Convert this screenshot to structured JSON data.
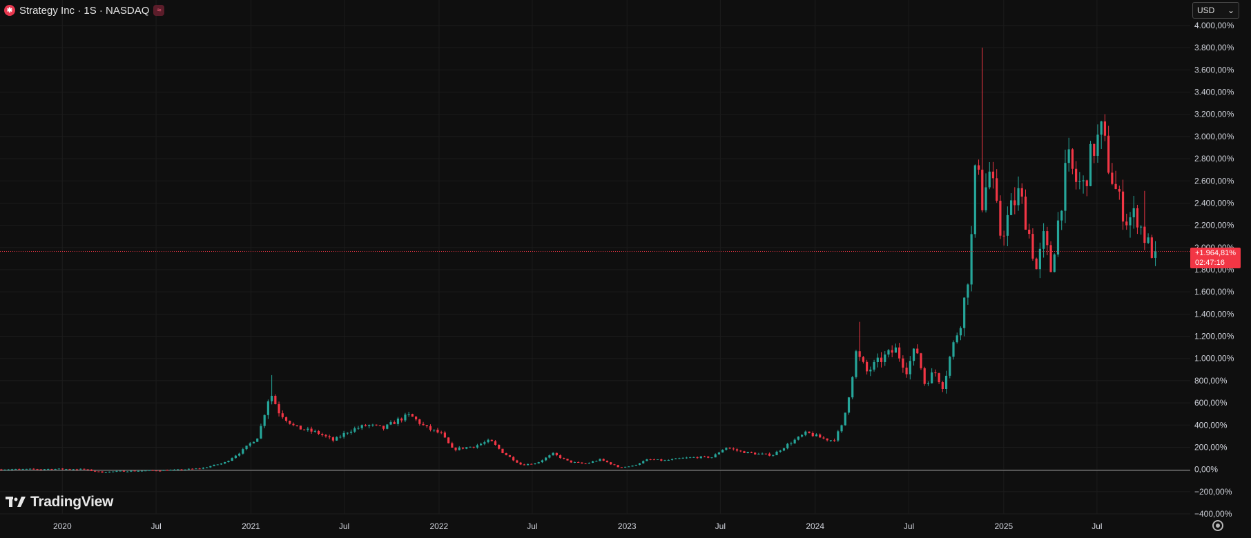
{
  "header": {
    "symbol_title": "Strategy Inc · 1S · NASDAQ",
    "logo_icon": "strategy-logo-icon",
    "status_icon": "approximation-icon"
  },
  "currency_select": {
    "value": "USD",
    "icon": "chevron-down-icon"
  },
  "branding": {
    "text": "TradingView",
    "icon": "tradingview-logo-icon"
  },
  "last_price": {
    "value": "+1.964,81%",
    "countdown": "02:47:16"
  },
  "colors": {
    "background": "#0f0f0f",
    "up": "#26a69a",
    "down": "#f23645",
    "grid": "#1c1c1c",
    "axis_text": "#d1d4dc"
  },
  "chart_data": {
    "type": "candlestick",
    "scale": "percent",
    "title": "",
    "xlabel": "",
    "ylabel": "",
    "ylim": [
      -400,
      4000
    ],
    "y_ticks": [
      -400,
      -200,
      0,
      200,
      400,
      600,
      800,
      1000,
      1200,
      1400,
      1600,
      1800,
      2000,
      2200,
      2400,
      2600,
      2800,
      3000,
      3200,
      3400,
      3600,
      3800,
      4000
    ],
    "y_tick_labels": [
      "−400,00%",
      "−200,00%",
      "0,00%",
      "200,00%",
      "400,00%",
      "600,00%",
      "800,00%",
      "1.000,00%",
      "1.200,00%",
      "1.400,00%",
      "1.600,00%",
      "1.800,00%",
      "2.000,00%",
      "2.200,00%",
      "2.400,00%",
      "2.600,00%",
      "2.800,00%",
      "3.000,00%",
      "3.200,00%",
      "3.400,00%",
      "3.600,00%",
      "3.800,00%",
      "4.000,00%"
    ],
    "x_range": [
      "2019-09-02",
      "2025-12-29"
    ],
    "x_ticks": [
      {
        "date": "2020-01-01",
        "label": "2020"
      },
      {
        "date": "2020-07-01",
        "label": "Jul"
      },
      {
        "date": "2021-01-01",
        "label": "2021"
      },
      {
        "date": "2021-07-01",
        "label": "Jul"
      },
      {
        "date": "2022-01-01",
        "label": "2022"
      },
      {
        "date": "2022-07-01",
        "label": "Jul"
      },
      {
        "date": "2023-01-01",
        "label": "2023"
      },
      {
        "date": "2023-07-01",
        "label": "Jul"
      },
      {
        "date": "2024-01-01",
        "label": "2024"
      },
      {
        "date": "2024-07-01",
        "label": "Jul"
      },
      {
        "date": "2025-01-01",
        "label": "2025"
      },
      {
        "date": "2025-07-01",
        "label": "Jul"
      }
    ],
    "last_value": 1964.81,
    "grid": true,
    "series_path": [
      [
        "2019-09-02",
        0
      ],
      [
        "2019-11-01",
        2
      ],
      [
        "2020-01-01",
        4
      ],
      [
        "2020-02-15",
        2
      ],
      [
        "2020-03-20",
        -25
      ],
      [
        "2020-05-01",
        -15
      ],
      [
        "2020-07-01",
        -10
      ],
      [
        "2020-08-15",
        -5
      ],
      [
        "2020-10-01",
        10
      ],
      [
        "2020-11-15",
        60
      ],
      [
        "2020-12-20",
        170
      ],
      [
        "2021-01-20",
        300
      ],
      [
        "2021-02-12",
        700
      ],
      [
        "2021-03-01",
        520
      ],
      [
        "2021-04-01",
        380
      ],
      [
        "2021-05-15",
        330
      ],
      [
        "2021-06-15",
        260
      ],
      [
        "2021-07-15",
        350
      ],
      [
        "2021-08-20",
        400
      ],
      [
        "2021-09-20",
        370
      ],
      [
        "2021-10-20",
        450
      ],
      [
        "2021-11-10",
        490
      ],
      [
        "2021-12-10",
        380
      ],
      [
        "2022-01-10",
        320
      ],
      [
        "2022-02-01",
        180
      ],
      [
        "2022-03-15",
        210
      ],
      [
        "2022-04-15",
        260
      ],
      [
        "2022-05-10",
        150
      ],
      [
        "2022-06-15",
        40
      ],
      [
        "2022-07-15",
        60
      ],
      [
        "2022-08-15",
        140
      ],
      [
        "2022-09-15",
        70
      ],
      [
        "2022-10-15",
        50
      ],
      [
        "2022-11-15",
        90
      ],
      [
        "2022-12-20",
        20
      ],
      [
        "2023-01-15",
        30
      ],
      [
        "2023-02-15",
        90
      ],
      [
        "2023-03-20",
        80
      ],
      [
        "2023-04-20",
        100
      ],
      [
        "2023-05-20",
        110
      ],
      [
        "2023-06-20",
        110
      ],
      [
        "2023-07-15",
        200
      ],
      [
        "2023-08-15",
        160
      ],
      [
        "2023-09-15",
        140
      ],
      [
        "2023-10-15",
        130
      ],
      [
        "2023-11-15",
        230
      ],
      [
        "2023-12-20",
        330
      ],
      [
        "2024-01-20",
        280
      ],
      [
        "2024-02-10",
        260
      ],
      [
        "2024-02-28",
        400
      ],
      [
        "2024-03-10",
        650
      ],
      [
        "2024-03-25",
        1050
      ],
      [
        "2024-04-15",
        880
      ],
      [
        "2024-05-15",
        1000
      ],
      [
        "2024-06-10",
        1080
      ],
      [
        "2024-07-01",
        900
      ],
      [
        "2024-07-20",
        1100
      ],
      [
        "2024-08-05",
        780
      ],
      [
        "2024-08-25",
        880
      ],
      [
        "2024-09-10",
        750
      ],
      [
        "2024-09-25",
        1050
      ],
      [
        "2024-10-15",
        1350
      ],
      [
        "2024-11-01",
        1850
      ],
      [
        "2024-11-15",
        2950
      ],
      [
        "2024-11-25",
        2400
      ],
      [
        "2024-12-10",
        2700
      ],
      [
        "2024-12-31",
        2100
      ],
      [
        "2025-01-20",
        2350
      ],
      [
        "2025-02-05",
        2500
      ],
      [
        "2025-02-25",
        2100
      ],
      [
        "2025-03-10",
        1800
      ],
      [
        "2025-03-25",
        2100
      ],
      [
        "2025-04-07",
        1800
      ],
      [
        "2025-04-25",
        2350
      ],
      [
        "2025-05-10",
        2800
      ],
      [
        "2025-05-25",
        2600
      ],
      [
        "2025-06-10",
        2550
      ],
      [
        "2025-06-25",
        2850
      ],
      [
        "2025-07-15",
        3050
      ],
      [
        "2025-07-30",
        2700
      ],
      [
        "2025-08-15",
        2450
      ],
      [
        "2025-09-01",
        2250
      ],
      [
        "2025-09-20",
        2300
      ],
      [
        "2025-10-05",
        2100
      ],
      [
        "2025-10-20",
        1964.81
      ]
    ],
    "spikes": [
      {
        "date": "2021-02-08",
        "high": 850
      },
      {
        "date": "2024-03-27",
        "high": 1330
      },
      {
        "date": "2024-11-18",
        "high": 3800
      },
      {
        "date": "2025-07-14",
        "high": 3180
      },
      {
        "date": "2025-09-29",
        "high": 2510
      }
    ]
  }
}
